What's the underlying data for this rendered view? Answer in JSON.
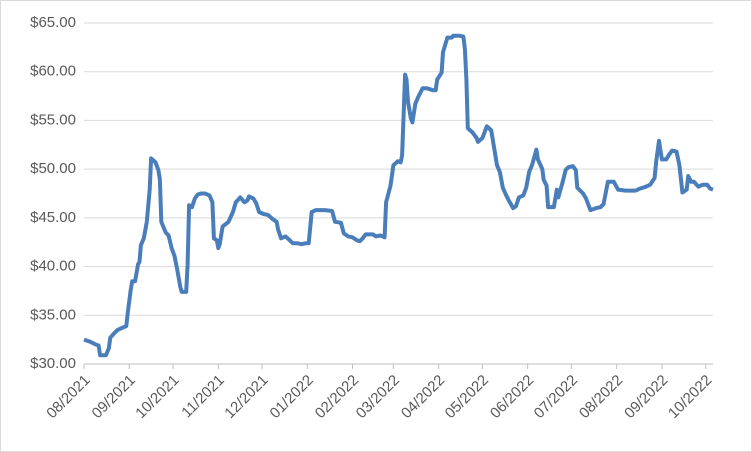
{
  "chart_data": {
    "type": "line",
    "x": [
      0,
      4,
      8,
      10,
      11,
      15,
      17,
      18,
      21,
      23,
      26,
      29,
      30,
      32,
      33,
      35,
      37,
      38,
      39,
      41,
      43,
      45,
      46,
      49,
      51,
      52,
      53,
      56,
      58,
      60,
      62,
      64,
      66,
      67,
      70,
      71,
      72,
      74,
      76,
      78,
      80,
      83,
      86,
      88,
      89,
      91,
      92,
      93,
      95,
      99,
      102,
      104,
      107,
      110,
      112,
      113,
      116,
      118,
      120,
      123,
      126,
      129,
      132,
      133,
      135,
      138,
      141,
      143,
      146,
      149,
      152,
      154,
      156,
      159,
      165,
      170,
      172,
      176,
      178,
      181,
      184,
      187,
      189,
      191,
      193,
      198,
      200,
      203,
      206,
      207,
      210,
      212,
      215,
      217,
      218,
      220,
      221,
      222,
      224,
      225,
      227,
      229,
      232,
      235,
      239,
      241,
      242,
      245,
      246,
      249,
      252,
      253,
      257,
      260,
      261,
      262,
      263,
      266,
      269,
      270,
      273,
      274,
      276,
      279,
      281,
      283,
      285,
      287,
      289,
      291,
      294,
      296,
      298,
      301,
      303,
      305,
      307,
      310,
      311,
      314,
      315,
      317,
      318,
      322,
      324,
      325,
      328,
      330,
      332,
      335,
      337,
      338,
      342,
      344,
      347,
      351,
      354,
      356,
      359,
      363,
      366,
      371,
      378,
      381,
      385,
      388,
      391,
      392,
      394,
      396,
      399,
      401,
      403,
      406,
      408,
      410,
      413,
      414,
      416,
      418,
      421,
      424,
      427,
      429,
      431
    ],
    "series": [
      {
        "color": "#4a7ebb",
        "values": [
          32.5,
          32.3,
          32.0,
          31.9,
          30.9,
          30.9,
          31.6,
          32.7,
          33.2,
          33.5,
          33.7,
          33.9,
          35.3,
          37.6,
          38.5,
          38.5,
          40.2,
          40.5,
          42.2,
          42.9,
          44.6,
          47.9,
          51.1,
          50.7,
          49.9,
          48.9,
          44.6,
          43.5,
          43.2,
          41.9,
          41.1,
          39.6,
          37.9,
          37.4,
          37.4,
          40.2,
          46.3,
          46.1,
          47.0,
          47.4,
          47.5,
          47.5,
          47.3,
          46.6,
          42.9,
          42.7,
          41.9,
          42.3,
          44.1,
          44.6,
          45.6,
          46.6,
          47.1,
          46.6,
          46.8,
          47.2,
          47.0,
          46.5,
          45.6,
          45.4,
          45.3,
          44.9,
          44.6,
          43.8,
          42.9,
          43.1,
          42.7,
          42.4,
          42.4,
          42.3,
          42.4,
          42.4,
          45.6,
          45.8,
          45.8,
          45.7,
          44.6,
          44.5,
          43.4,
          43.1,
          43.0,
          42.7,
          42.6,
          42.9,
          43.3,
          43.3,
          43.1,
          43.2,
          43.0,
          46.6,
          48.3,
          50.4,
          50.8,
          50.7,
          51.4,
          59.7,
          59.2,
          56.9,
          55.2,
          54.8,
          56.7,
          57.4,
          58.3,
          58.3,
          58.1,
          58.1,
          59.2,
          59.9,
          62.0,
          63.5,
          63.5,
          63.7,
          63.7,
          63.6,
          62.3,
          59.2,
          54.2,
          53.8,
          53.2,
          52.8,
          53.2,
          53.6,
          54.4,
          54.0,
          52.2,
          50.4,
          49.7,
          48.1,
          47.4,
          46.8,
          46.0,
          46.2,
          47.1,
          47.3,
          48.1,
          49.7,
          50.4,
          52.0,
          51.0,
          50.0,
          48.9,
          48.3,
          46.1,
          46.1,
          47.9,
          47.1,
          48.7,
          49.9,
          50.2,
          50.3,
          49.9,
          48.1,
          47.5,
          47.0,
          45.8,
          46.0,
          46.1,
          46.4,
          48.7,
          48.7,
          47.9,
          47.8,
          47.8,
          48.0,
          48.2,
          48.4,
          49.1,
          50.7,
          52.9,
          51.0,
          51.0,
          51.5,
          51.9,
          51.8,
          50.4,
          47.6,
          47.9,
          49.3,
          48.7,
          48.7,
          48.2,
          48.4,
          48.4,
          48.0,
          47.9
        ]
      }
    ],
    "xlim": [
      0,
      431
    ],
    "xticks": [
      {
        "value": 0,
        "label": "08/2021"
      },
      {
        "value": 31,
        "label": "09/2021"
      },
      {
        "value": 61,
        "label": "10/2021"
      },
      {
        "value": 92,
        "label": "11/2021"
      },
      {
        "value": 122,
        "label": "12/2021"
      },
      {
        "value": 153,
        "label": "01/2022"
      },
      {
        "value": 184,
        "label": "02/2022"
      },
      {
        "value": 212,
        "label": "03/2022"
      },
      {
        "value": 243,
        "label": "04/2022"
      },
      {
        "value": 273,
        "label": "05/2022"
      },
      {
        "value": 304,
        "label": "06/2022"
      },
      {
        "value": 334,
        "label": "07/2022"
      },
      {
        "value": 365,
        "label": "08/2022"
      },
      {
        "value": 396,
        "label": "09/2022"
      },
      {
        "value": 426,
        "label": "10/2022"
      }
    ],
    "ylim": [
      30,
      65
    ],
    "yticks": [
      {
        "value": 30,
        "label": "$30.00"
      },
      {
        "value": 35,
        "label": "$35.00"
      },
      {
        "value": 40,
        "label": "$40.00"
      },
      {
        "value": 45,
        "label": "$45.00"
      },
      {
        "value": 50,
        "label": "$50.00"
      },
      {
        "value": 55,
        "label": "$55.00"
      },
      {
        "value": 60,
        "label": "$60.00"
      },
      {
        "value": 65,
        "label": "$65.00"
      }
    ],
    "grid": true
  }
}
